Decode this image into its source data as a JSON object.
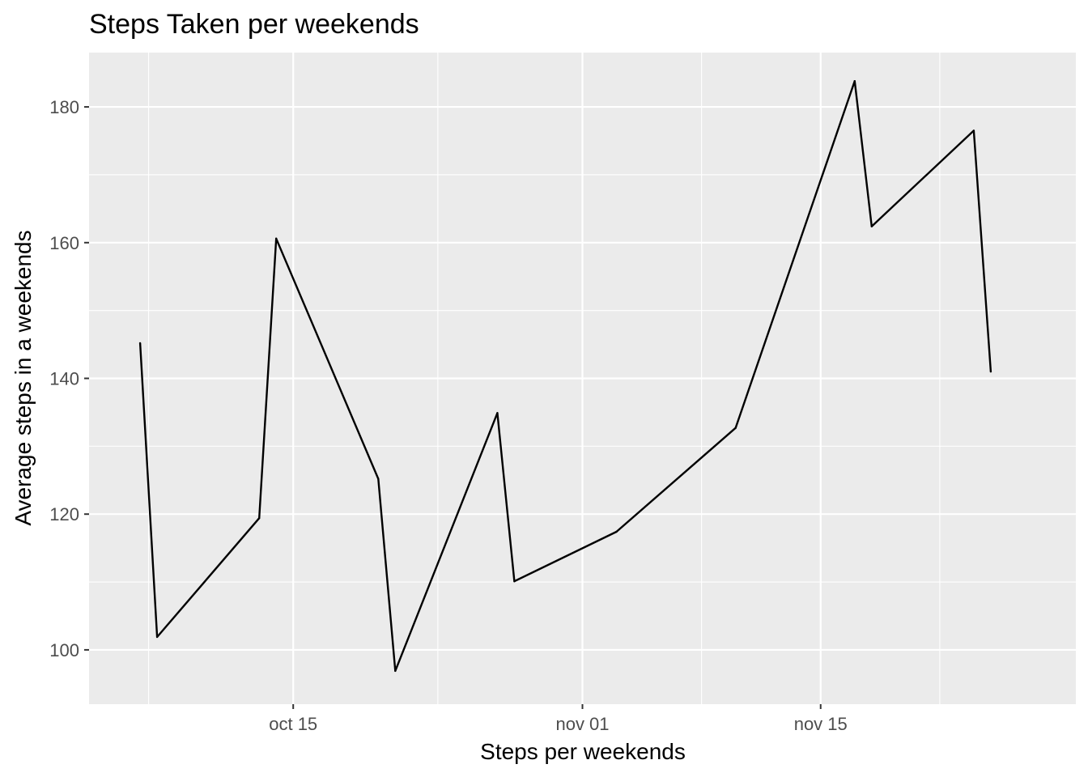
{
  "chart_data": {
    "type": "line",
    "title": "Steps Taken per weekends",
    "xlabel": "Steps per weekends",
    "ylabel": "Average steps in a weekends",
    "x_ticks": [
      {
        "label": "oct 15",
        "date": "2012-10-15"
      },
      {
        "label": "nov 01",
        "date": "2012-11-01"
      },
      {
        "label": "nov 15",
        "date": "2012-11-15"
      }
    ],
    "y_ticks": [
      100,
      120,
      140,
      160,
      180
    ],
    "xlim": [
      "2012-10-03",
      "2012-11-30"
    ],
    "ylim": [
      92,
      188
    ],
    "grid": true,
    "legend": "none",
    "series": [
      {
        "color": "#000000",
        "points": [
          {
            "x": "2012-10-06",
            "y": 145.2
          },
          {
            "x": "2012-10-07",
            "y": 101.9
          },
          {
            "x": "2012-10-13",
            "y": 119.4
          },
          {
            "x": "2012-10-14",
            "y": 160.6
          },
          {
            "x": "2012-10-20",
            "y": 125.2
          },
          {
            "x": "2012-10-21",
            "y": 96.9
          },
          {
            "x": "2012-10-27",
            "y": 134.9
          },
          {
            "x": "2012-10-28",
            "y": 110.1
          },
          {
            "x": "2012-11-03",
            "y": 117.4
          },
          {
            "x": "2012-11-10",
            "y": 132.7
          },
          {
            "x": "2012-11-17",
            "y": 183.8
          },
          {
            "x": "2012-11-18",
            "y": 162.4
          },
          {
            "x": "2012-11-24",
            "y": 176.5
          },
          {
            "x": "2012-11-25",
            "y": 141.0
          }
        ]
      }
    ],
    "colors": {
      "panel": "#ebebeb",
      "grid": "#ffffff",
      "line": "#000000",
      "tick_text": "#4d4d4d"
    }
  }
}
